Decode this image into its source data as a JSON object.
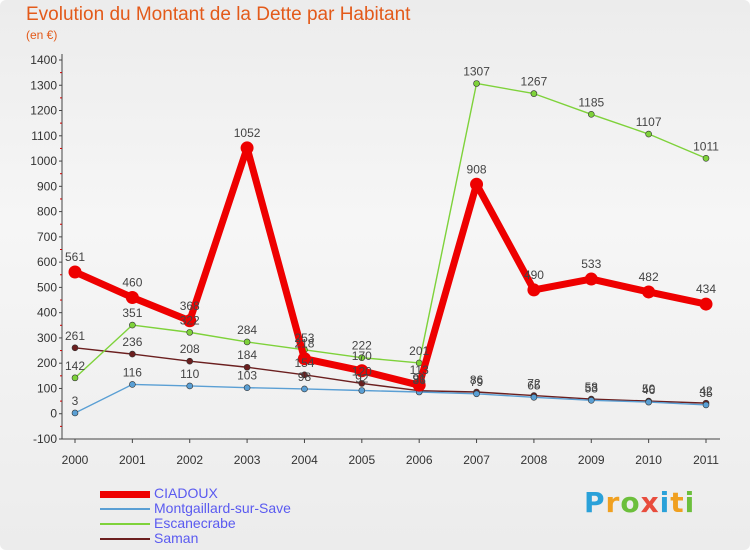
{
  "title": "Evolution du Montant de la Dette par Habitant",
  "subtitle": "(en €)",
  "logo": {
    "letters": [
      "P",
      "r",
      "o",
      "x",
      "i",
      "t",
      "i"
    ],
    "colors": [
      "#2aa1d9",
      "#f0a020",
      "#6cbf3c",
      "#e84c3d",
      "#2aa1d9",
      "#f0a020",
      "#6cbf3c"
    ]
  },
  "chart_data": {
    "type": "line",
    "title": "Evolution du Montant de la Dette par Habitant",
    "ylabel": "(en €)",
    "ylim": [
      -100,
      1400
    ],
    "yticks": [
      "-100",
      "0",
      "100",
      "200",
      "300",
      "400",
      "500",
      "600",
      "700",
      "800",
      "900",
      "1000",
      "1100",
      "1200",
      "1300",
      "1400"
    ],
    "grid": false,
    "legend_position": "bottom-left",
    "categories": [
      "2000",
      "2001",
      "2002",
      "2003",
      "2004",
      "2005",
      "2006",
      "2007",
      "2008",
      "2009",
      "2010",
      "2011"
    ],
    "series": [
      {
        "name": "CIADOUX",
        "color": "#ee0000",
        "values": [
          561,
          460,
          368,
          1052,
          218,
          170,
          113,
          908,
          490,
          533,
          482,
          434
        ]
      },
      {
        "name": "Montgaillard-sur-Save",
        "color": "#5a9fd4",
        "values": [
          3,
          116,
          110,
          103,
          98,
          92,
          86,
          79,
          65,
          53,
          46,
          35
        ]
      },
      {
        "name": "Escanecrabe",
        "color": "#7ed23a",
        "values": [
          142,
          351,
          322,
          284,
          253,
          222,
          201,
          1307,
          1267,
          1185,
          1107,
          1011
        ]
      },
      {
        "name": "Saman",
        "color": "#6b1f1f",
        "values": [
          261,
          236,
          208,
          184,
          154,
          120,
          91,
          86,
          72,
          58,
          50,
          42
        ]
      }
    ]
  }
}
